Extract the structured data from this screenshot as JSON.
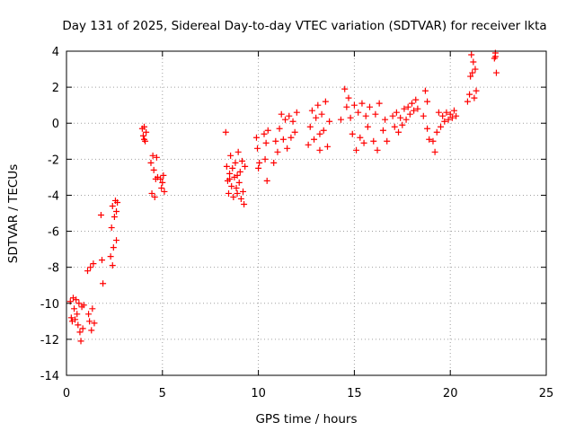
{
  "chart_data": {
    "type": "scatter",
    "title": "Day 131 of 2025, Sidereal Day-to-day VTEC variation (SDTVAR) for receiver lkta",
    "xlabel": "GPS time / hours",
    "ylabel": "SDTVAR / TECUs",
    "xlim": [
      0,
      25
    ],
    "ylim": [
      -14,
      4
    ],
    "xticks": [
      0,
      5,
      10,
      15,
      20,
      25
    ],
    "yticks": [
      -14,
      -12,
      -10,
      -8,
      -6,
      -4,
      -2,
      0,
      2,
      4
    ],
    "grid": true,
    "marker": "+",
    "color": "#ff0000",
    "series": [
      {
        "name": "SDTVAR",
        "points": [
          [
            0.2,
            -9.9
          ],
          [
            0.25,
            -10.8
          ],
          [
            0.3,
            -11.0
          ],
          [
            0.35,
            -9.7
          ],
          [
            0.4,
            -10.3
          ],
          [
            0.45,
            -10.9
          ],
          [
            0.5,
            -9.8
          ],
          [
            0.55,
            -10.6
          ],
          [
            0.6,
            -11.2
          ],
          [
            0.65,
            -10.0
          ],
          [
            0.7,
            -11.6
          ],
          [
            0.75,
            -12.1
          ],
          [
            0.8,
            -10.2
          ],
          [
            0.85,
            -11.4
          ],
          [
            0.9,
            -10.1
          ],
          [
            1.1,
            -8.2
          ],
          [
            1.15,
            -10.6
          ],
          [
            1.2,
            -11.0
          ],
          [
            1.25,
            -8.0
          ],
          [
            1.3,
            -11.5
          ],
          [
            1.35,
            -10.3
          ],
          [
            1.4,
            -7.8
          ],
          [
            1.45,
            -11.1
          ],
          [
            1.8,
            -5.1
          ],
          [
            1.85,
            -7.6
          ],
          [
            1.9,
            -8.9
          ],
          [
            2.3,
            -7.4
          ],
          [
            2.35,
            -5.8
          ],
          [
            2.4,
            -4.6
          ],
          [
            2.45,
            -6.9
          ],
          [
            2.5,
            -5.2
          ],
          [
            2.55,
            -4.3
          ],
          [
            2.6,
            -6.5
          ],
          [
            2.65,
            -4.4
          ],
          [
            2.4,
            -7.9
          ],
          [
            2.6,
            -4.9
          ],
          [
            3.95,
            -0.3
          ],
          [
            4.0,
            -0.7
          ],
          [
            4.05,
            -0.2
          ],
          [
            4.1,
            -1.0
          ],
          [
            4.15,
            -0.5
          ],
          [
            4.05,
            -0.9
          ],
          [
            4.4,
            -2.2
          ],
          [
            4.45,
            -3.9
          ],
          [
            4.5,
            -1.8
          ],
          [
            4.55,
            -2.6
          ],
          [
            4.6,
            -4.1
          ],
          [
            4.65,
            -3.1
          ],
          [
            4.7,
            -1.9
          ],
          [
            4.75,
            -3.0
          ],
          [
            4.9,
            -3.1
          ],
          [
            4.95,
            -3.6
          ],
          [
            5.0,
            -3.3
          ],
          [
            5.05,
            -2.9
          ],
          [
            5.1,
            -3.8
          ],
          [
            8.3,
            -0.5
          ],
          [
            8.35,
            -2.4
          ],
          [
            8.4,
            -3.2
          ],
          [
            8.45,
            -3.9
          ],
          [
            8.5,
            -2.8
          ],
          [
            8.55,
            -1.8
          ],
          [
            8.6,
            -3.5
          ],
          [
            8.65,
            -2.5
          ],
          [
            8.7,
            -4.1
          ],
          [
            8.75,
            -3.0
          ],
          [
            8.8,
            -2.2
          ],
          [
            8.85,
            -3.6
          ],
          [
            8.9,
            -2.9
          ],
          [
            8.95,
            -1.6
          ],
          [
            9.0,
            -3.3
          ],
          [
            9.05,
            -2.7
          ],
          [
            9.1,
            -4.2
          ],
          [
            9.15,
            -2.1
          ],
          [
            9.2,
            -3.8
          ],
          [
            9.25,
            -4.5
          ],
          [
            9.3,
            -2.4
          ],
          [
            8.5,
            -3.1
          ],
          [
            8.9,
            -3.9
          ],
          [
            9.9,
            -0.8
          ],
          [
            9.95,
            -1.4
          ],
          [
            10.0,
            -2.5
          ],
          [
            10.05,
            -2.2
          ],
          [
            10.3,
            -0.6
          ],
          [
            10.35,
            -2.0
          ],
          [
            10.4,
            -1.1
          ],
          [
            10.45,
            -3.2
          ],
          [
            10.5,
            -0.4
          ],
          [
            10.8,
            -2.2
          ],
          [
            10.9,
            -1.0
          ],
          [
            11.0,
            -1.6
          ],
          [
            11.1,
            -0.3
          ],
          [
            11.2,
            0.5
          ],
          [
            11.3,
            -0.9
          ],
          [
            11.4,
            0.2
          ],
          [
            11.5,
            -1.4
          ],
          [
            11.6,
            0.4
          ],
          [
            11.7,
            -0.8
          ],
          [
            11.8,
            0.1
          ],
          [
            11.9,
            -0.5
          ],
          [
            12.0,
            0.6
          ],
          [
            12.6,
            -1.2
          ],
          [
            12.7,
            -0.2
          ],
          [
            12.8,
            0.7
          ],
          [
            12.9,
            -0.9
          ],
          [
            13.0,
            0.3
          ],
          [
            13.1,
            1.0
          ],
          [
            13.2,
            -1.5
          ],
          [
            13.3,
            0.5
          ],
          [
            13.4,
            -0.4
          ],
          [
            13.5,
            1.2
          ],
          [
            13.6,
            -1.3
          ],
          [
            13.7,
            0.1
          ],
          [
            13.2,
            -0.6
          ],
          [
            14.3,
            0.2
          ],
          [
            14.5,
            1.9
          ],
          [
            14.6,
            0.9
          ],
          [
            14.7,
            1.4
          ],
          [
            14.8,
            0.3
          ],
          [
            14.9,
            -0.6
          ],
          [
            15.0,
            1.0
          ],
          [
            15.1,
            -1.5
          ],
          [
            15.2,
            0.6
          ],
          [
            15.3,
            -0.8
          ],
          [
            15.4,
            1.1
          ],
          [
            15.5,
            -1.1
          ],
          [
            15.6,
            0.4
          ],
          [
            15.7,
            -0.2
          ],
          [
            15.8,
            0.9
          ],
          [
            16.0,
            -1.0
          ],
          [
            16.1,
            0.5
          ],
          [
            16.2,
            -1.5
          ],
          [
            16.3,
            1.1
          ],
          [
            16.5,
            -0.4
          ],
          [
            16.6,
            0.2
          ],
          [
            16.7,
            -1.0
          ],
          [
            17.0,
            0.4
          ],
          [
            17.1,
            -0.2
          ],
          [
            17.2,
            0.6
          ],
          [
            17.3,
            -0.5
          ],
          [
            17.4,
            0.3
          ],
          [
            17.5,
            -0.1
          ],
          [
            17.6,
            0.8
          ],
          [
            17.7,
            0.2
          ],
          [
            17.8,
            0.9
          ],
          [
            17.9,
            0.5
          ],
          [
            18.0,
            1.1
          ],
          [
            18.1,
            0.7
          ],
          [
            18.2,
            1.3
          ],
          [
            18.3,
            0.8
          ],
          [
            18.6,
            0.4
          ],
          [
            18.7,
            1.8
          ],
          [
            18.8,
            -0.3
          ],
          [
            18.9,
            -0.9
          ],
          [
            18.8,
            1.2
          ],
          [
            19.1,
            -1.0
          ],
          [
            19.2,
            -1.6
          ],
          [
            19.3,
            -0.5
          ],
          [
            19.4,
            0.6
          ],
          [
            19.5,
            -0.2
          ],
          [
            19.6,
            0.4
          ],
          [
            19.7,
            0.1
          ],
          [
            19.8,
            0.6
          ],
          [
            19.9,
            0.2
          ],
          [
            20.0,
            0.5
          ],
          [
            20.1,
            0.3
          ],
          [
            20.2,
            0.7
          ],
          [
            20.3,
            0.4
          ],
          [
            20.9,
            1.2
          ],
          [
            21.0,
            1.6
          ],
          [
            21.05,
            2.6
          ],
          [
            21.1,
            3.8
          ],
          [
            21.15,
            2.8
          ],
          [
            21.2,
            3.4
          ],
          [
            21.25,
            1.4
          ],
          [
            21.3,
            3.0
          ],
          [
            21.35,
            1.8
          ],
          [
            22.3,
            3.6
          ],
          [
            22.35,
            3.9
          ],
          [
            22.4,
            2.8
          ],
          [
            22.35,
            3.7
          ]
        ]
      }
    ]
  }
}
